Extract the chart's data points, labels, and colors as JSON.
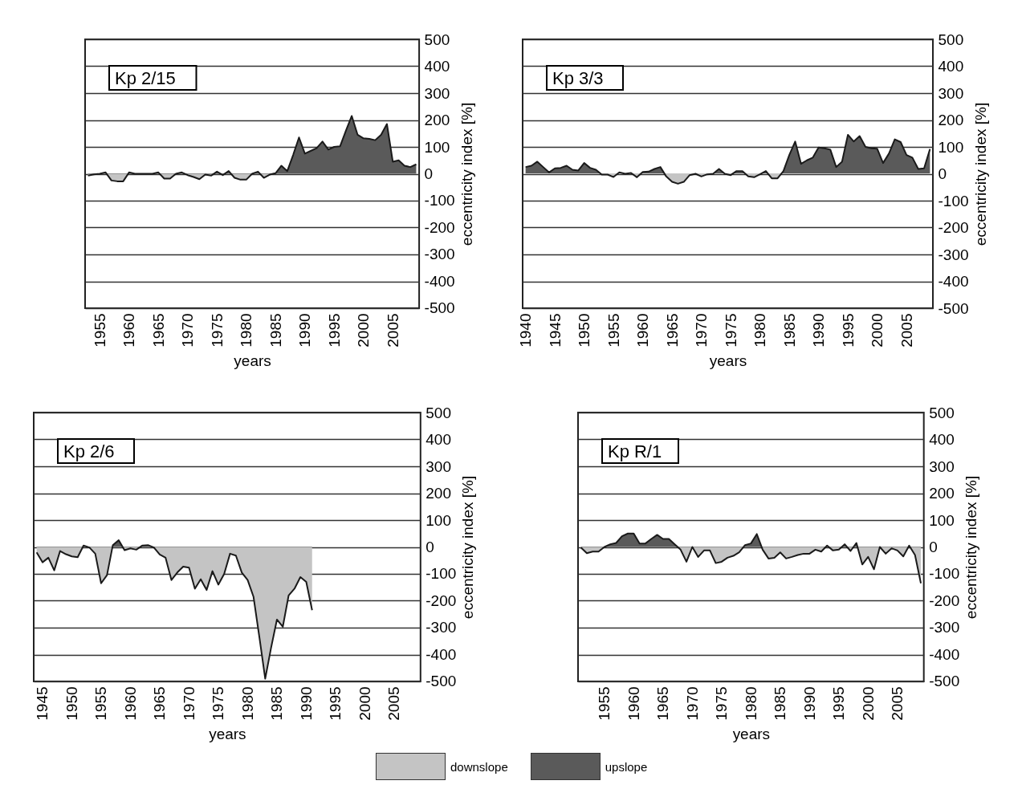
{
  "chart_data": [
    {
      "type": "area",
      "title": "Kp 2/15",
      "xlabel": "years",
      "ylabel": "eccentricity index [%]",
      "x": [
        1953,
        1954,
        1955,
        1956,
        1957,
        1958,
        1959,
        1960,
        1961,
        1962,
        1963,
        1964,
        1965,
        1966,
        1967,
        1968,
        1969,
        1970,
        1971,
        1972,
        1973,
        1974,
        1975,
        1976,
        1977,
        1978,
        1979,
        1980,
        1981,
        1982,
        1983,
        1984,
        1985,
        1986,
        1987,
        1988,
        1989,
        1990,
        1991,
        1992,
        1993,
        1994,
        1995,
        1996,
        1997,
        1998,
        1999,
        2000,
        2001,
        2002,
        2003,
        2004,
        2005,
        2006,
        2007,
        2008,
        2009
      ],
      "series": [
        {
          "color": "#1a1a1a",
          "values": [
            -7,
            -2,
            0,
            5,
            -25,
            -28,
            -28,
            5,
            0,
            0,
            0,
            0,
            5,
            -18,
            -18,
            0,
            5,
            -5,
            -12,
            -20,
            -3,
            -7,
            8,
            -5,
            10,
            -15,
            -22,
            -22,
            0,
            8,
            -15,
            -3,
            2,
            30,
            10,
            70,
            135,
            75,
            85,
            95,
            120,
            90,
            100,
            102,
            160,
            215,
            145,
            132,
            130,
            125,
            145,
            185,
            45,
            50,
            30,
            25,
            35
          ]
        }
      ],
      "xlim": [
        1952.5,
        2009.5
      ],
      "xticks": [
        1955,
        1960,
        1965,
        1970,
        1975,
        1980,
        1985,
        1990,
        1995,
        2000,
        2005
      ],
      "ylim": [
        -500,
        500
      ],
      "yticks": [
        -500,
        -400,
        -300,
        -200,
        -100,
        0,
        100,
        200,
        300,
        400,
        500
      ],
      "grid": "y"
    },
    {
      "type": "area",
      "title": "Kp 3/3",
      "xlabel": "years",
      "ylabel": "eccentricity index [%]",
      "x": [
        1940,
        1941,
        1942,
        1943,
        1944,
        1945,
        1946,
        1947,
        1948,
        1949,
        1950,
        1951,
        1952,
        1953,
        1954,
        1955,
        1956,
        1957,
        1958,
        1959,
        1960,
        1961,
        1962,
        1963,
        1964,
        1965,
        1966,
        1967,
        1968,
        1969,
        1970,
        1971,
        1972,
        1973,
        1974,
        1975,
        1976,
        1977,
        1978,
        1979,
        1980,
        1981,
        1982,
        1983,
        1984,
        1985,
        1986,
        1987,
        1988,
        1989,
        1990,
        1991,
        1992,
        1993,
        1994,
        1995,
        1996,
        1997,
        1998,
        1999,
        2000,
        2001,
        2002,
        2003,
        2004,
        2005,
        2006,
        2007,
        2008,
        2009
      ],
      "series": [
        {
          "color": "#1a1a1a",
          "values": [
            25,
            30,
            45,
            25,
            5,
            20,
            22,
            30,
            15,
            12,
            40,
            22,
            15,
            -3,
            -3,
            -12,
            5,
            0,
            3,
            -13,
            7,
            8,
            18,
            25,
            -10,
            -30,
            -37,
            -30,
            -5,
            0,
            -10,
            -2,
            0,
            18,
            0,
            -5,
            10,
            10,
            -10,
            -13,
            -2,
            10,
            -17,
            -17,
            10,
            70,
            120,
            37,
            50,
            60,
            98,
            95,
            90,
            25,
            45,
            145,
            120,
            140,
            100,
            95,
            93,
            40,
            75,
            128,
            118,
            70,
            60,
            18,
            20,
            92
          ]
        }
      ],
      "xlim": [
        1939.5,
        2009.5
      ],
      "xticks": [
        1940,
        1945,
        1950,
        1955,
        1960,
        1965,
        1970,
        1975,
        1980,
        1985,
        1990,
        1995,
        2000,
        2005
      ],
      "ylim": [
        -500,
        500
      ],
      "yticks": [
        -500,
        -400,
        -300,
        -200,
        -100,
        0,
        100,
        200,
        300,
        400,
        500
      ],
      "grid": "y"
    },
    {
      "type": "area",
      "title": "Kp 2/6",
      "xlabel": "years",
      "ylabel": "eccentricity index [%]",
      "x": [
        1944,
        1945,
        1946,
        1947,
        1948,
        1949,
        1950,
        1951,
        1952,
        1953,
        1954,
        1955,
        1956,
        1957,
        1958,
        1959,
        1960,
        1961,
        1962,
        1963,
        1964,
        1965,
        1966,
        1967,
        1968,
        1969,
        1970,
        1971,
        1972,
        1973,
        1974,
        1975,
        1976,
        1977,
        1978,
        1979,
        1980,
        1981,
        1982,
        1983,
        1984,
        1985,
        1986,
        1987,
        1988,
        1989,
        1990,
        1991
      ],
      "series": [
        {
          "color": "#1a1a1a",
          "values": [
            -20,
            -57,
            -40,
            -87,
            -15,
            -27,
            -35,
            -38,
            5,
            -2,
            -25,
            -135,
            -105,
            7,
            25,
            -12,
            -5,
            -10,
            5,
            7,
            -2,
            -28,
            -40,
            -123,
            -95,
            -73,
            -77,
            -155,
            -120,
            -160,
            -90,
            -140,
            -100,
            -25,
            -32,
            -95,
            -123,
            -185,
            -335,
            -490,
            -375,
            -270,
            -297,
            -180,
            -155,
            -112,
            -130,
            -235
          ]
        }
      ],
      "xlim": [
        1943.5,
        2009.5
      ],
      "xticks": [
        1945,
        1950,
        1955,
        1960,
        1965,
        1970,
        1975,
        1980,
        1985,
        1990,
        1995,
        2000,
        2005
      ],
      "ylim": [
        -500,
        500
      ],
      "yticks": [
        -500,
        -400,
        -300,
        -200,
        -100,
        0,
        100,
        200,
        300,
        400,
        500
      ],
      "grid": "y"
    },
    {
      "type": "area",
      "title": "Kp R/1",
      "xlabel": "years",
      "ylabel": "eccentricity index [%]",
      "x": [
        1951,
        1952,
        1953,
        1954,
        1955,
        1956,
        1957,
        1958,
        1959,
        1960,
        1961,
        1962,
        1963,
        1964,
        1965,
        1966,
        1967,
        1968,
        1969,
        1970,
        1971,
        1972,
        1973,
        1974,
        1975,
        1976,
        1977,
        1978,
        1979,
        1980,
        1981,
        1982,
        1983,
        1984,
        1985,
        1986,
        1987,
        1988,
        1989,
        1990,
        1991,
        1992,
        1993,
        1994,
        1995,
        1996,
        1997,
        1998,
        1999,
        2000,
        2001,
        2002,
        2003,
        2004,
        2005,
        2006,
        2007,
        2008,
        2009
      ],
      "series": [
        {
          "color": "#1a1a1a",
          "values": [
            -2,
            -23,
            -17,
            -17,
            0,
            10,
            15,
            40,
            50,
            50,
            13,
            13,
            30,
            45,
            30,
            30,
            10,
            -10,
            -55,
            0,
            -37,
            -13,
            -13,
            -60,
            -55,
            -40,
            -33,
            -20,
            7,
            13,
            48,
            -10,
            -43,
            -40,
            -20,
            -43,
            -37,
            -30,
            -25,
            -25,
            -10,
            -17,
            5,
            -13,
            -10,
            10,
            -15,
            15,
            -65,
            -37,
            -83,
            0,
            -25,
            -5,
            -13,
            -35,
            5,
            -30,
            -135
          ]
        }
      ],
      "xlim": [
        1950.5,
        2009.5
      ],
      "xticks": [
        1955,
        1960,
        1965,
        1970,
        1975,
        1980,
        1985,
        1990,
        1995,
        2000,
        2005
      ],
      "ylim": [
        -500,
        500
      ],
      "yticks": [
        -500,
        -400,
        -300,
        -200,
        -100,
        0,
        100,
        200,
        300,
        400,
        500
      ],
      "grid": "y"
    },
    {
      "type": "other",
      "categories": [
        "downslope",
        "upslope"
      ],
      "colors": [
        "#c4c4c4",
        "#5a5a5a"
      ]
    }
  ]
}
